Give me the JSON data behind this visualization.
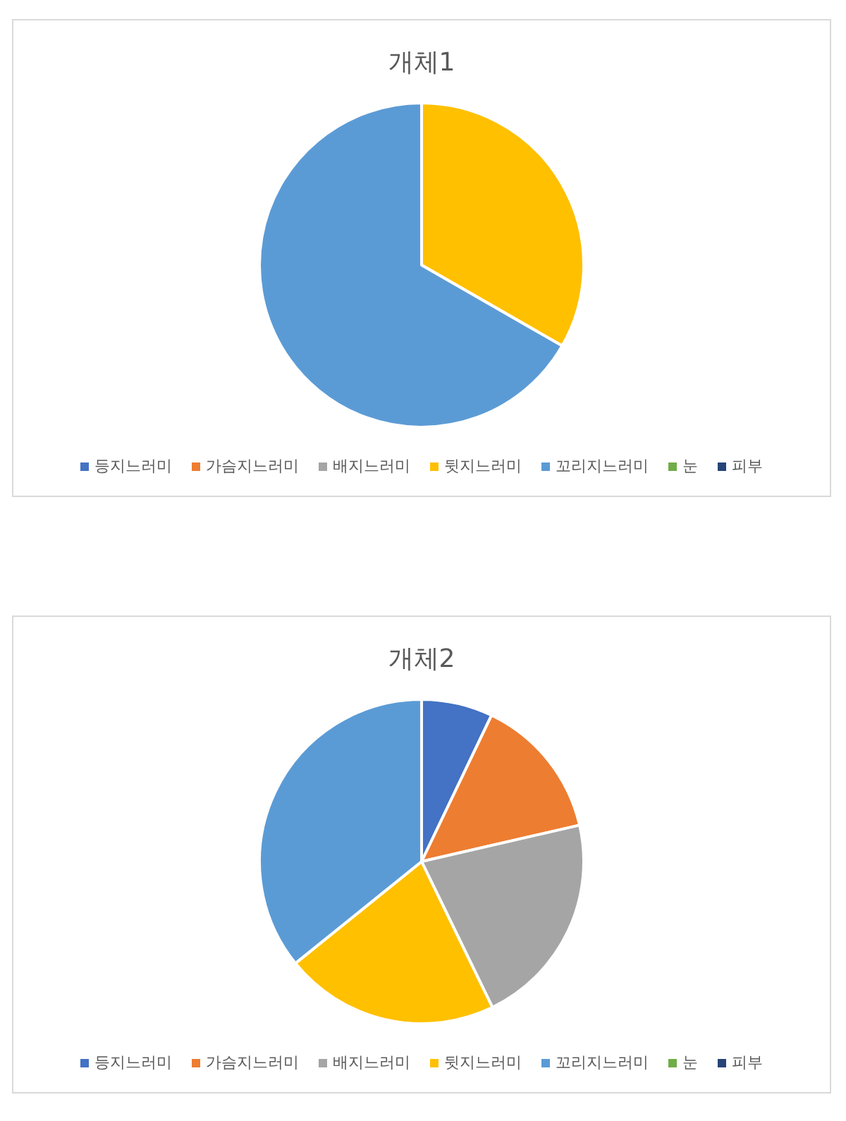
{
  "chart_data": [
    {
      "type": "pie",
      "title": "개체1",
      "categories": [
        "등지느러미",
        "가슴지느러미",
        "배지느러미",
        "뒷지느러미",
        "꼬리지느러미",
        "눈",
        "피부"
      ],
      "values": [
        0,
        0,
        0,
        33.3,
        66.7,
        0,
        0
      ],
      "colors": [
        "#4472c4",
        "#ed7d31",
        "#a5a5a5",
        "#ffc000",
        "#5b9bd5",
        "#70ad47",
        "#264478"
      ],
      "legend": "bottom"
    },
    {
      "type": "pie",
      "title": "개체2",
      "categories": [
        "등지느러미",
        "가슴지느러미",
        "배지느러미",
        "뒷지느러미",
        "꼬리지느러미",
        "눈",
        "피부"
      ],
      "values": [
        7.1,
        14.3,
        21.4,
        21.4,
        35.8,
        0,
        0
      ],
      "colors": [
        "#4472c4",
        "#ed7d31",
        "#a5a5a5",
        "#ffc000",
        "#5b9bd5",
        "#70ad47",
        "#264478"
      ],
      "legend": "bottom"
    }
  ]
}
